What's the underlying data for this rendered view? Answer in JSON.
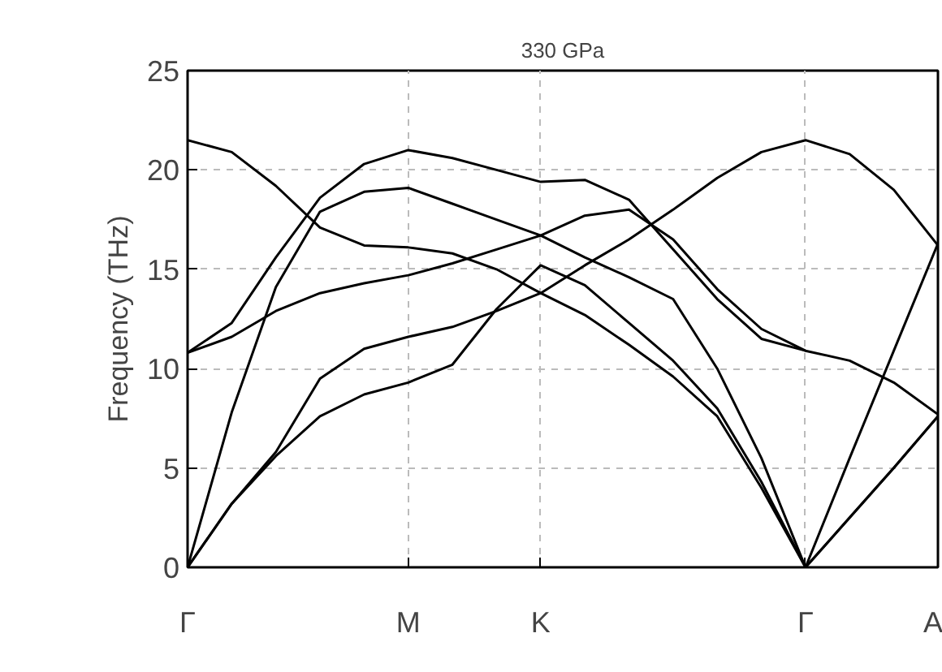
{
  "chart_data": {
    "type": "line",
    "title": "330 GPa",
    "ylabel": "Frequency (THz)",
    "categories": [
      "Γ",
      null,
      null,
      null,
      null,
      "M",
      null,
      null,
      "K",
      null,
      null,
      null,
      null,
      null,
      "Γ",
      null,
      null,
      "A"
    ],
    "series": [
      {
        "color": "#000000",
        "values": [
          0,
          3.2,
          5.6,
          7.6,
          8.7,
          9.3,
          10.2,
          13.0,
          15.2,
          14.2,
          12.3,
          10.4,
          8.0,
          4.3,
          0,
          2.5,
          5.0,
          7.6
        ]
      },
      {
        "color": "#000000",
        "values": [
          0,
          3.2,
          5.8,
          9.5,
          11.0,
          11.6,
          12.1,
          12.9,
          13.8,
          15.2,
          16.5,
          18.0,
          19.6,
          20.9,
          21.5,
          20.8,
          19.0,
          16.2
        ]
      },
      {
        "color": "#000000",
        "values": [
          10.8,
          11.6,
          12.9,
          13.8,
          14.3,
          14.7,
          15.3,
          16.0,
          16.7,
          17.7,
          18.0,
          16.5,
          14.0,
          12.0,
          10.9,
          10.4,
          9.3,
          7.7
        ]
      },
      {
        "color": "#000000",
        "values": [
          10.8,
          12.3,
          15.6,
          18.6,
          20.3,
          21.0,
          20.6,
          20.0,
          19.4,
          19.5,
          18.5,
          16.0,
          13.5,
          11.5,
          10.9,
          null,
          null,
          null
        ]
      },
      {
        "color": "#000000",
        "values": [
          0,
          7.8,
          14.1,
          17.9,
          18.9,
          19.1,
          18.3,
          17.5,
          16.7,
          15.6,
          14.6,
          13.5,
          10.0,
          5.5,
          0,
          5.5,
          10.9,
          16.3
        ]
      },
      {
        "color": "#000000",
        "values": [
          21.5,
          20.9,
          19.2,
          17.1,
          16.2,
          16.1,
          15.8,
          15.0,
          13.8,
          12.7,
          11.2,
          9.6,
          7.6,
          4.0,
          0,
          2.5,
          5.0,
          7.6
        ]
      }
    ],
    "ylim": [
      0,
      25
    ],
    "yticks": [
      0,
      5,
      10,
      15,
      20,
      25
    ],
    "grid": true,
    "marker": "none",
    "line_style": "solid"
  }
}
